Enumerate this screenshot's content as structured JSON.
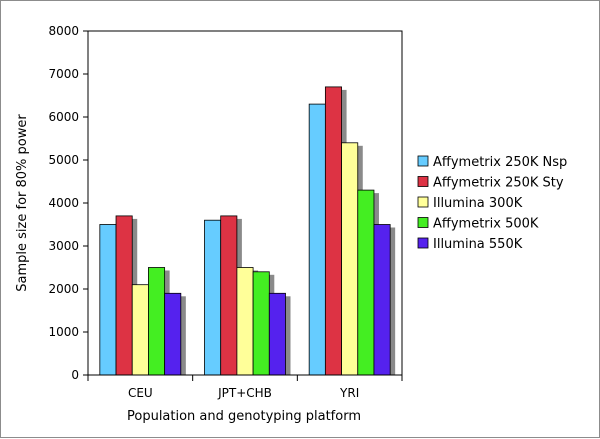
{
  "chart_data": {
    "type": "bar",
    "xlabel": "Population and genotyping platform",
    "ylabel": "Sample size for 80% power",
    "ylim": [
      0,
      8000
    ],
    "yticks": [
      0,
      1000,
      2000,
      3000,
      4000,
      5000,
      6000,
      7000,
      8000
    ],
    "categories": [
      "CEU",
      "JPT+CHB",
      "YRI"
    ],
    "legend_position": "right",
    "grid": false,
    "series": [
      {
        "name": "Affymetrix 250K Nsp",
        "color": "#66ccff",
        "values": [
          3500,
          3600,
          6300
        ]
      },
      {
        "name": "Affymetrix 250K Sty",
        "color": "#dd3344",
        "values": [
          3700,
          3700,
          6700
        ]
      },
      {
        "name": "Illumina 300K",
        "color": "#ffff99",
        "values": [
          2100,
          2500,
          5400
        ]
      },
      {
        "name": "Affymetrix 500K",
        "color": "#44ee22",
        "values": [
          2500,
          2400,
          4300
        ]
      },
      {
        "name": "Illumina 550K",
        "color": "#5522ee",
        "values": [
          1900,
          1900,
          3500
        ]
      }
    ]
  }
}
